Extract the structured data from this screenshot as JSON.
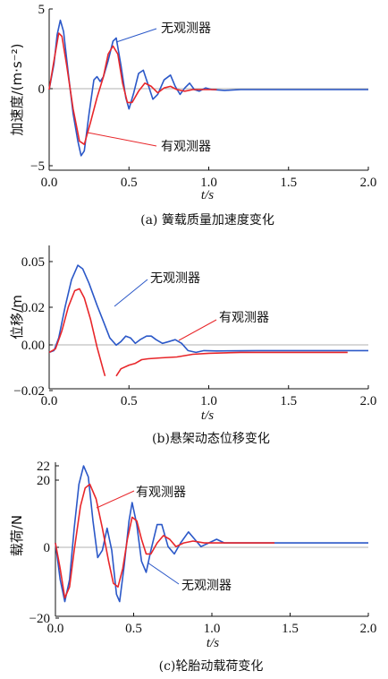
{
  "colors": {
    "without_observer": "#2b58c8",
    "with_observer": "#e8262a"
  },
  "chart_data": [
    {
      "type": "line",
      "caption": "(a) 簧载质量加速度变化",
      "xlabel": "t/s",
      "ylabel": "加速度/(m·s⁻²)",
      "xlim": [
        0,
        2
      ],
      "ylim": [
        -5,
        5
      ],
      "xticks": [
        "0.0",
        "0.5",
        "1.0",
        "1.5",
        "2.0"
      ],
      "yticks": [
        "5",
        "0",
        "−5"
      ],
      "series": [
        {
          "name": "无观测器",
          "color": "#2b58c8",
          "points": [
            [
              0,
              0
            ],
            [
              0.03,
              1.6
            ],
            [
              0.05,
              3.4
            ],
            [
              0.07,
              4.3
            ],
            [
              0.09,
              3.6
            ],
            [
              0.12,
              1.0
            ],
            [
              0.15,
              -1.5
            ],
            [
              0.18,
              -3.2
            ],
            [
              0.2,
              -4.1
            ],
            [
              0.22,
              -3.8
            ],
            [
              0.25,
              -1.5
            ],
            [
              0.28,
              0.6
            ],
            [
              0.3,
              0.8
            ],
            [
              0.32,
              0.5
            ],
            [
              0.34,
              0.8
            ],
            [
              0.37,
              1.8
            ],
            [
              0.4,
              3.0
            ],
            [
              0.42,
              3.2
            ],
            [
              0.45,
              1.5
            ],
            [
              0.48,
              -0.5
            ],
            [
              0.5,
              -1.2
            ],
            [
              0.53,
              -0.2
            ],
            [
              0.56,
              1.0
            ],
            [
              0.59,
              1.2
            ],
            [
              0.62,
              0.3
            ],
            [
              0.65,
              -0.6
            ],
            [
              0.68,
              -0.3
            ],
            [
              0.72,
              0.6
            ],
            [
              0.76,
              0.9
            ],
            [
              0.79,
              0.2
            ],
            [
              0.82,
              -0.3
            ],
            [
              0.85,
              0.1
            ],
            [
              0.88,
              0.4
            ],
            [
              0.91,
              0.0
            ],
            [
              0.94,
              -0.1
            ],
            [
              0.98,
              0.1
            ],
            [
              1.02,
              0.0
            ],
            [
              1.1,
              -0.05
            ],
            [
              1.2,
              0.0
            ],
            [
              2.0,
              0.0
            ]
          ]
        },
        {
          "name": "有观测器",
          "color": "#e8262a",
          "points": [
            [
              0,
              0
            ],
            [
              0.03,
              1.8
            ],
            [
              0.06,
              3.5
            ],
            [
              0.08,
              3.3
            ],
            [
              0.11,
              1.5
            ],
            [
              0.15,
              -1.2
            ],
            [
              0.19,
              -3.2
            ],
            [
              0.22,
              -3.4
            ],
            [
              0.26,
              -2.0
            ],
            [
              0.3,
              -0.5
            ],
            [
              0.34,
              0.8
            ],
            [
              0.37,
              2.2
            ],
            [
              0.4,
              2.7
            ],
            [
              0.43,
              2.2
            ],
            [
              0.46,
              0.4
            ],
            [
              0.49,
              -0.8
            ],
            [
              0.52,
              -0.8
            ],
            [
              0.56,
              -0.1
            ],
            [
              0.6,
              0.4
            ],
            [
              0.64,
              0.2
            ],
            [
              0.68,
              -0.2
            ],
            [
              0.72,
              0.1
            ],
            [
              0.76,
              0.2
            ],
            [
              0.8,
              0.0
            ],
            [
              0.85,
              -0.1
            ],
            [
              0.9,
              0.0
            ],
            [
              1.0,
              0.0
            ],
            [
              1.05,
              0.0
            ]
          ]
        }
      ],
      "annotations": [
        "无观测器",
        "有观测器"
      ]
    },
    {
      "type": "line",
      "caption": "(b)悬架动态位移变化",
      "xlabel": "t/s",
      "ylabel": "位移/m",
      "xlim": [
        0,
        2
      ],
      "ylim": [
        -0.02,
        0.05
      ],
      "xticks": [
        "0.0",
        "0.5",
        "1.0",
        "1.5",
        "2.0"
      ],
      "yticks": [
        "0.05",
        "0.02",
        "0.00",
        "−0.02"
      ],
      "series": [
        {
          "name": "无观测器",
          "color": "#2b58c8",
          "points": [
            [
              0,
              0
            ],
            [
              0.03,
              0.001
            ],
            [
              0.06,
              0.008
            ],
            [
              0.1,
              0.025
            ],
            [
              0.14,
              0.04
            ],
            [
              0.18,
              0.048
            ],
            [
              0.21,
              0.046
            ],
            [
              0.25,
              0.038
            ],
            [
              0.3,
              0.026
            ],
            [
              0.34,
              0.017
            ],
            [
              0.38,
              0.008
            ],
            [
              0.42,
              0.004
            ],
            [
              0.45,
              0.006
            ],
            [
              0.48,
              0.009
            ],
            [
              0.51,
              0.008
            ],
            [
              0.54,
              0.005
            ],
            [
              0.57,
              0.007
            ],
            [
              0.61,
              0.009
            ],
            [
              0.64,
              0.009
            ],
            [
              0.67,
              0.007
            ],
            [
              0.71,
              0.005
            ],
            [
              0.75,
              0.006
            ],
            [
              0.79,
              0.007
            ],
            [
              0.83,
              0.005
            ],
            [
              0.87,
              0.001
            ],
            [
              0.92,
              0.0
            ],
            [
              0.97,
              0.001
            ],
            [
              1.05,
              0.0008
            ],
            [
              1.3,
              0.001
            ],
            [
              1.6,
              0.001
            ],
            [
              2.0,
              0.001
            ]
          ]
        },
        {
          "name": "有观测器",
          "color": "#e8262a",
          "points": [
            [
              0,
              0
            ],
            [
              0.04,
              0.002
            ],
            [
              0.08,
              0.012
            ],
            [
              0.12,
              0.025
            ],
            [
              0.16,
              0.034
            ],
            [
              0.19,
              0.035
            ],
            [
              0.22,
              0.03
            ],
            [
              0.26,
              0.018
            ],
            [
              0.3,
              0.003
            ],
            [
              0.34,
              -0.01
            ],
            [
              0.35,
              -0.013
            ],
            [
              null,
              null
            ],
            [
              0.42,
              -0.013
            ],
            [
              0.45,
              -0.009
            ],
            [
              0.5,
              -0.007
            ],
            [
              0.54,
              -0.006
            ],
            [
              0.58,
              -0.004
            ],
            [
              0.62,
              -0.0035
            ],
            [
              0.7,
              -0.003
            ],
            [
              0.8,
              -0.0025
            ],
            [
              0.9,
              -0.001
            ],
            [
              1.0,
              -0.0005
            ],
            [
              1.2,
              0.0
            ],
            [
              1.5,
              0.0
            ],
            [
              1.87,
              0.0
            ]
          ]
        }
      ],
      "annotations": [
        "无观测器",
        "有观测器"
      ]
    },
    {
      "type": "line",
      "caption": "(c)轮胎动载荷变化",
      "xlabel": "t/s",
      "ylabel": "载荷/N",
      "xlim": [
        0,
        2
      ],
      "ylim": [
        -20,
        22
      ],
      "xticks": [
        "0.0",
        "0.5",
        "1.0",
        "1.5",
        "2.0"
      ],
      "yticks": [
        "22",
        "20",
        "0",
        "−20"
      ],
      "series": [
        {
          "name": "无观测器",
          "color": "#2b58c8",
          "points": [
            [
              0,
              0
            ],
            [
              0.03,
              -10
            ],
            [
              0.06,
              -16
            ],
            [
              0.09,
              -10
            ],
            [
              0.12,
              4
            ],
            [
              0.15,
              16
            ],
            [
              0.18,
              21
            ],
            [
              0.21,
              18
            ],
            [
              0.24,
              6
            ],
            [
              0.27,
              -4
            ],
            [
              0.3,
              -2
            ],
            [
              0.33,
              4
            ],
            [
              0.36,
              -2
            ],
            [
              0.39,
              -14
            ],
            [
              0.41,
              -16
            ],
            [
              0.44,
              -6
            ],
            [
              0.47,
              6
            ],
            [
              0.49,
              11
            ],
            [
              0.52,
              5
            ],
            [
              0.55,
              -5
            ],
            [
              0.58,
              -8
            ],
            [
              0.61,
              -2
            ],
            [
              0.65,
              5
            ],
            [
              0.68,
              5
            ],
            [
              0.72,
              -1
            ],
            [
              0.76,
              -3
            ],
            [
              0.8,
              0
            ],
            [
              0.85,
              3
            ],
            [
              0.89,
              1
            ],
            [
              0.93,
              -1
            ],
            [
              0.98,
              0
            ],
            [
              1.03,
              1
            ],
            [
              1.08,
              0
            ],
            [
              1.2,
              0
            ],
            [
              2.0,
              0
            ]
          ]
        },
        {
          "name": "有观测器",
          "color": "#e8262a",
          "points": [
            [
              0,
              0
            ],
            [
              0.03,
              -7
            ],
            [
              0.06,
              -15
            ],
            [
              0.09,
              -12
            ],
            [
              0.12,
              -2
            ],
            [
              0.16,
              10
            ],
            [
              0.19,
              15
            ],
            [
              0.22,
              16
            ],
            [
              0.26,
              12
            ],
            [
              0.3,
              4
            ],
            [
              0.34,
              -5
            ],
            [
              0.37,
              -11
            ],
            [
              0.4,
              -12
            ],
            [
              0.43,
              -7
            ],
            [
              0.46,
              1
            ],
            [
              0.49,
              7
            ],
            [
              0.52,
              6
            ],
            [
              0.55,
              1
            ],
            [
              0.58,
              -3
            ],
            [
              0.61,
              -3
            ],
            [
              0.65,
              0
            ],
            [
              0.69,
              2
            ],
            [
              0.73,
              1
            ],
            [
              0.77,
              -1
            ],
            [
              0.82,
              0
            ],
            [
              0.88,
              0.5
            ],
            [
              0.95,
              0
            ],
            [
              1.1,
              0
            ],
            [
              1.4,
              0
            ]
          ]
        }
      ],
      "annotations": [
        "有观测器",
        "无观测器"
      ]
    }
  ]
}
